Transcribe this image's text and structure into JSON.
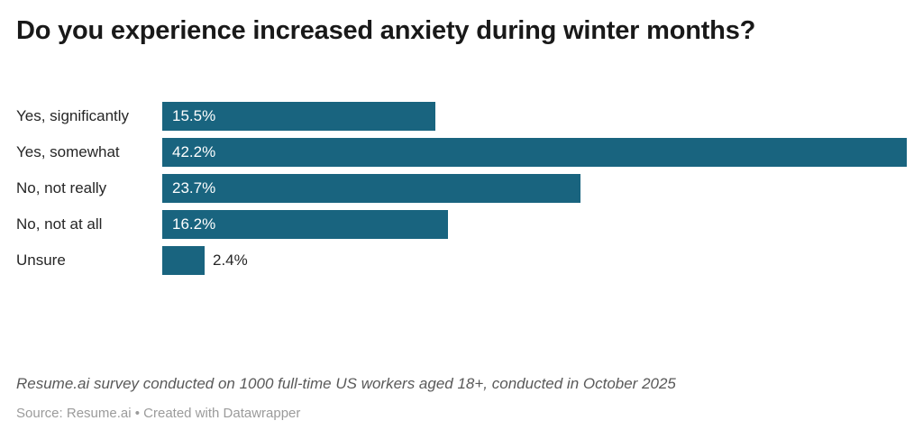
{
  "title": "Do you experience increased anxiety during winter months?",
  "colors": {
    "bar": "#19647f",
    "title_text": "#191919",
    "category_label": "#262626",
    "value_inside": "#ffffff",
    "value_outside": "#262626",
    "footnote_text": "#595959",
    "source_text": "#9b9b9b",
    "background": "#ffffff"
  },
  "chart_data": {
    "type": "bar",
    "orientation": "horizontal",
    "title": "Do you experience increased anxiety during winter months?",
    "categories": [
      "Yes, significantly",
      "Yes, somewhat",
      "No, not really",
      "No, not at all",
      "Unsure"
    ],
    "values": [
      15.5,
      42.2,
      23.7,
      16.2,
      2.4
    ],
    "value_labels": [
      "15.5%",
      "42.2%",
      "23.7%",
      "16.2%",
      "2.4%"
    ],
    "xlabel": "",
    "ylabel": "",
    "xlim": [
      0,
      42.2
    ],
    "grid": false,
    "legend": false,
    "value_label_placement_rule": "inside bar unless bar too narrow, then outside right"
  },
  "footer": {
    "footnote": "Resume.ai survey conducted on 1000 full-time US workers aged 18+, conducted in October 2025",
    "source": "Source: Resume.ai • Created with Datawrapper"
  }
}
